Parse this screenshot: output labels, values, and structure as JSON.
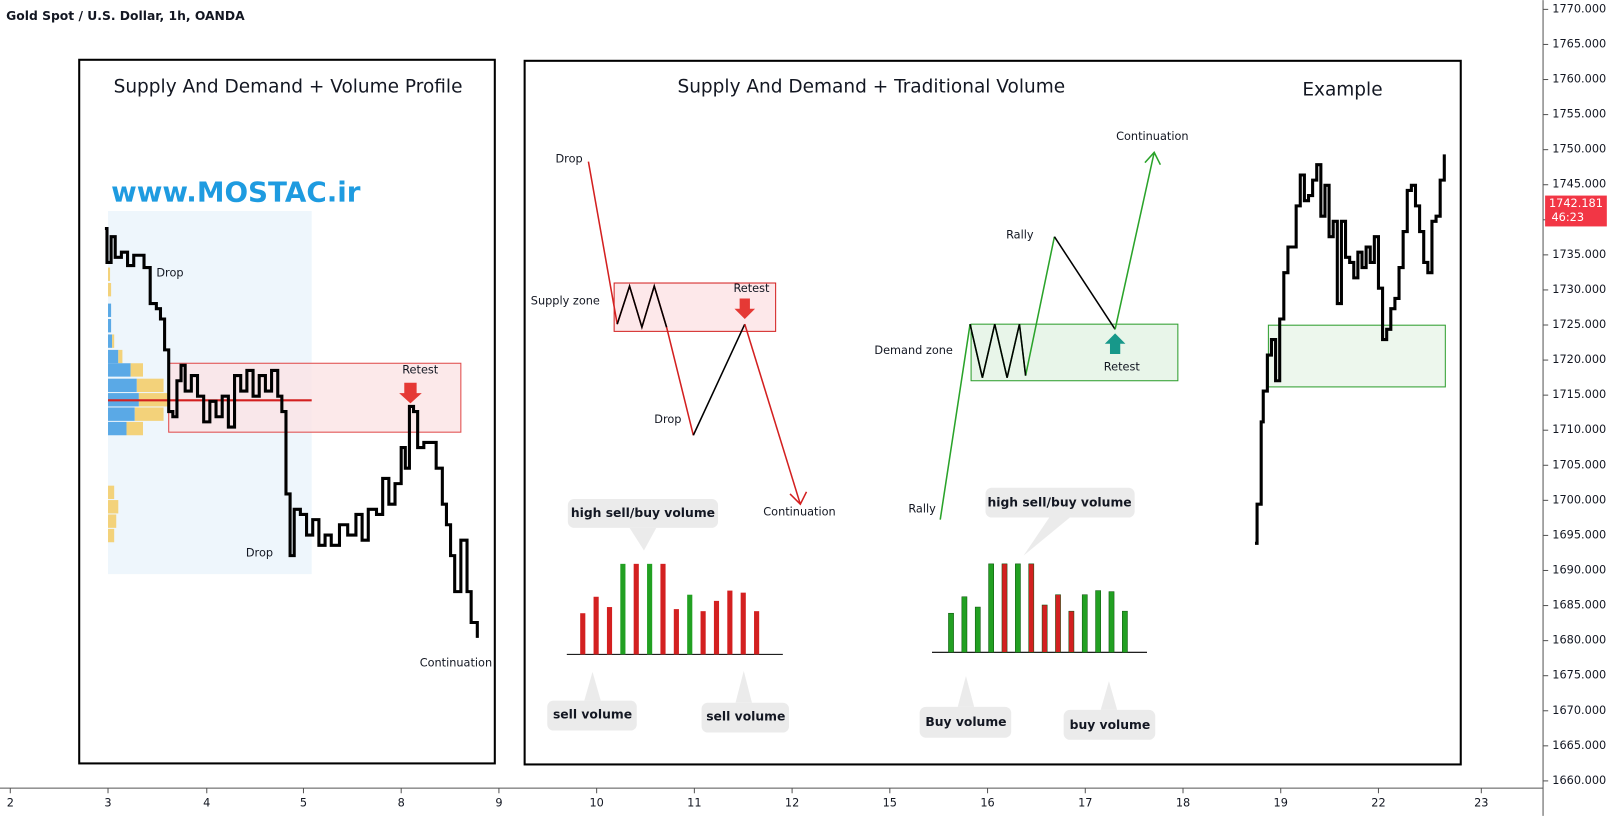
{
  "header": {
    "symbol": "Gold Spot / U.S. Dollar, 1h, OANDA"
  },
  "price_axis": {
    "labels": [
      "1770.000",
      "1765.000",
      "1760.000",
      "1755.000",
      "1750.000",
      "1745.000",
      "1740.000",
      "1735.000",
      "1730.000",
      "1725.000",
      "1720.000",
      "1715.000",
      "1710.000",
      "1705.000",
      "1700.000",
      "1695.000",
      "1690.000",
      "1685.000",
      "1680.000",
      "1675.000",
      "1670.000",
      "1665.000",
      "1660.000"
    ],
    "current_price": "1742.181",
    "countdown": "46:23"
  },
  "time_axis": {
    "labels": [
      "2",
      "3",
      "4",
      "5",
      "8",
      "9",
      "10",
      "11",
      "12",
      "15",
      "16",
      "17",
      "18",
      "19",
      "22",
      "23"
    ]
  },
  "panel_volume_profile": {
    "title": "Supply And Demand + Volume Profile",
    "watermark": "www.MOSTAC.ir",
    "labels": {
      "drop_top": "Drop",
      "retest": "Retest",
      "drop_bottom": "Drop",
      "continuation": "Continuation"
    }
  },
  "panel_traditional": {
    "title": "Supply And Demand + Traditional Volume",
    "supply": {
      "drop_top": "Drop",
      "zone": "Supply zone",
      "retest": "Retest",
      "drop": "Drop",
      "continuation": "Continuation",
      "callout_high": "high sell/buy volume",
      "callout_left": "sell volume",
      "callout_right": "sell volume"
    },
    "demand": {
      "rally_bottom": "Rally",
      "zone": "Demand zone",
      "rally": "Rally",
      "continuation": "Continuation",
      "retest": "Retest",
      "callout_high": "high sell/buy volume",
      "callout_left": "Buy volume",
      "callout_right": "buy volume"
    }
  },
  "panel_example": {
    "title": "Example"
  }
}
